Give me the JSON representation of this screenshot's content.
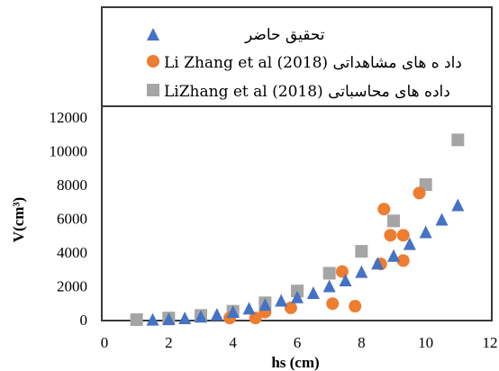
{
  "chart_data": {
    "type": "scatter",
    "title": "",
    "xlabel": "hs (cm)",
    "ylabel": "V(cm³)",
    "xlim": [
      0,
      12
    ],
    "ylim": [
      0,
      12000
    ],
    "xticks": [
      0,
      2,
      4,
      6,
      8,
      10,
      12
    ],
    "yticks": [
      0,
      2000,
      4000,
      6000,
      8000,
      10000,
      12000
    ],
    "grid": false,
    "legend_position": "top",
    "series": [
      {
        "name": "تحقیق حاضر",
        "marker": "triangle",
        "color": "#4472c4",
        "x": [
          1.5,
          2.0,
          2.5,
          3.0,
          3.5,
          4.0,
          4.5,
          5.0,
          5.5,
          6.0,
          6.5,
          7.0,
          7.5,
          8.0,
          8.5,
          9.0,
          9.5,
          10.0,
          10.5,
          11.0
        ],
        "y": [
          20,
          50,
          110,
          200,
          320,
          480,
          680,
          900,
          1150,
          1350,
          1600,
          2000,
          2350,
          2850,
          3350,
          3800,
          4500,
          5200,
          5950,
          6800
        ]
      },
      {
        "name": "Li Zhang et al (2018) داد ه های مشاهداتی",
        "marker": "circle",
        "color": "#ed7d31",
        "x": [
          3.9,
          4.7,
          5.0,
          5.8,
          7.1,
          7.4,
          7.8,
          8.6,
          8.7,
          8.9,
          9.3,
          9.3,
          9.8
        ],
        "y": [
          100,
          100,
          450,
          700,
          950,
          2850,
          800,
          3300,
          6550,
          5000,
          5000,
          3500,
          7500
        ]
      },
      {
        "name": "LiZhang et al (2018) داده های محاسباتی",
        "marker": "square",
        "color": "#a5a5a5",
        "x": [
          1.0,
          2.0,
          3.0,
          4.0,
          5.0,
          6.0,
          7.0,
          8.0,
          9.0,
          10.0,
          11.0
        ],
        "y": [
          0,
          100,
          250,
          500,
          1000,
          1700,
          2750,
          4050,
          5850,
          8000,
          10650
        ]
      }
    ]
  }
}
